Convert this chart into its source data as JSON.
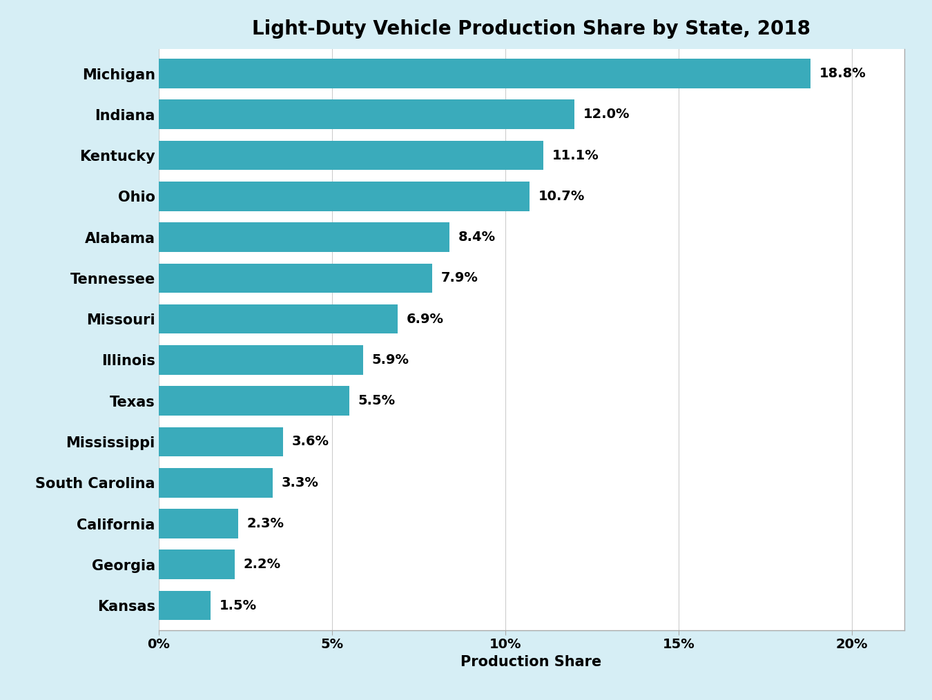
{
  "title": "Light-Duty Vehicle Production Share by State, 2018",
  "xlabel": "Production Share",
  "states": [
    "Michigan",
    "Indiana",
    "Kentucky",
    "Ohio",
    "Alabama",
    "Tennessee",
    "Missouri",
    "Illinois",
    "Texas",
    "Mississippi",
    "South Carolina",
    "California",
    "Georgia",
    "Kansas"
  ],
  "values": [
    18.8,
    12.0,
    11.1,
    10.7,
    8.4,
    7.9,
    6.9,
    5.9,
    5.5,
    3.6,
    3.3,
    2.3,
    2.2,
    1.5
  ],
  "labels": [
    "18.8%",
    "12.0%",
    "11.1%",
    "10.7%",
    "8.4%",
    "7.9%",
    "6.9%",
    "5.9%",
    "5.5%",
    "3.6%",
    "3.3%",
    "2.3%",
    "2.2%",
    "1.5%"
  ],
  "bar_color": "#3AABBB",
  "background_color": "#D6EEF5",
  "plot_bg_color": "#FFFFFF",
  "title_fontsize": 20,
  "label_fontsize": 15,
  "tick_fontsize": 14,
  "bar_label_fontsize": 14,
  "ytick_fontsize": 15,
  "xlim": [
    0,
    21.5
  ],
  "xticks": [
    0,
    5,
    10,
    15,
    20
  ],
  "xtick_labels": [
    "0%",
    "5%",
    "10%",
    "15%",
    "20%"
  ]
}
